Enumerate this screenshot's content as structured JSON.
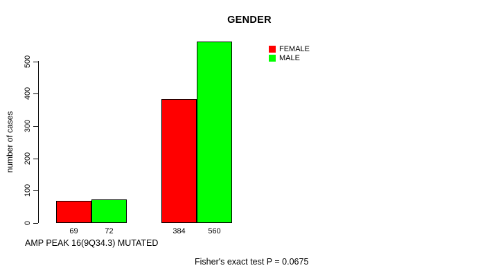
{
  "chart_data": {
    "type": "bar",
    "title": "GENDER",
    "ylabel": "number of cases",
    "xlabel": "AMP PEAK 16(9Q34.3) MUTATED",
    "annotation": "Fisher's exact test P = 0.0675",
    "yticks": [
      0,
      100,
      200,
      300,
      400,
      500
    ],
    "ylim": [
      0,
      560
    ],
    "grid": false,
    "legend_position": "top-right",
    "series": [
      {
        "name": "FEMALE",
        "color": "#ff0000",
        "values": [
          69,
          384
        ]
      },
      {
        "name": "MALE",
        "color": "#00ff00",
        "values": [
          72,
          560
        ]
      }
    ],
    "bar_labels": [
      [
        "69",
        "72"
      ],
      [
        "384",
        "560"
      ]
    ],
    "colors": {
      "female": "#ff0000",
      "male": "#00ff00",
      "axis": "#000000",
      "background": "#ffffff"
    }
  }
}
